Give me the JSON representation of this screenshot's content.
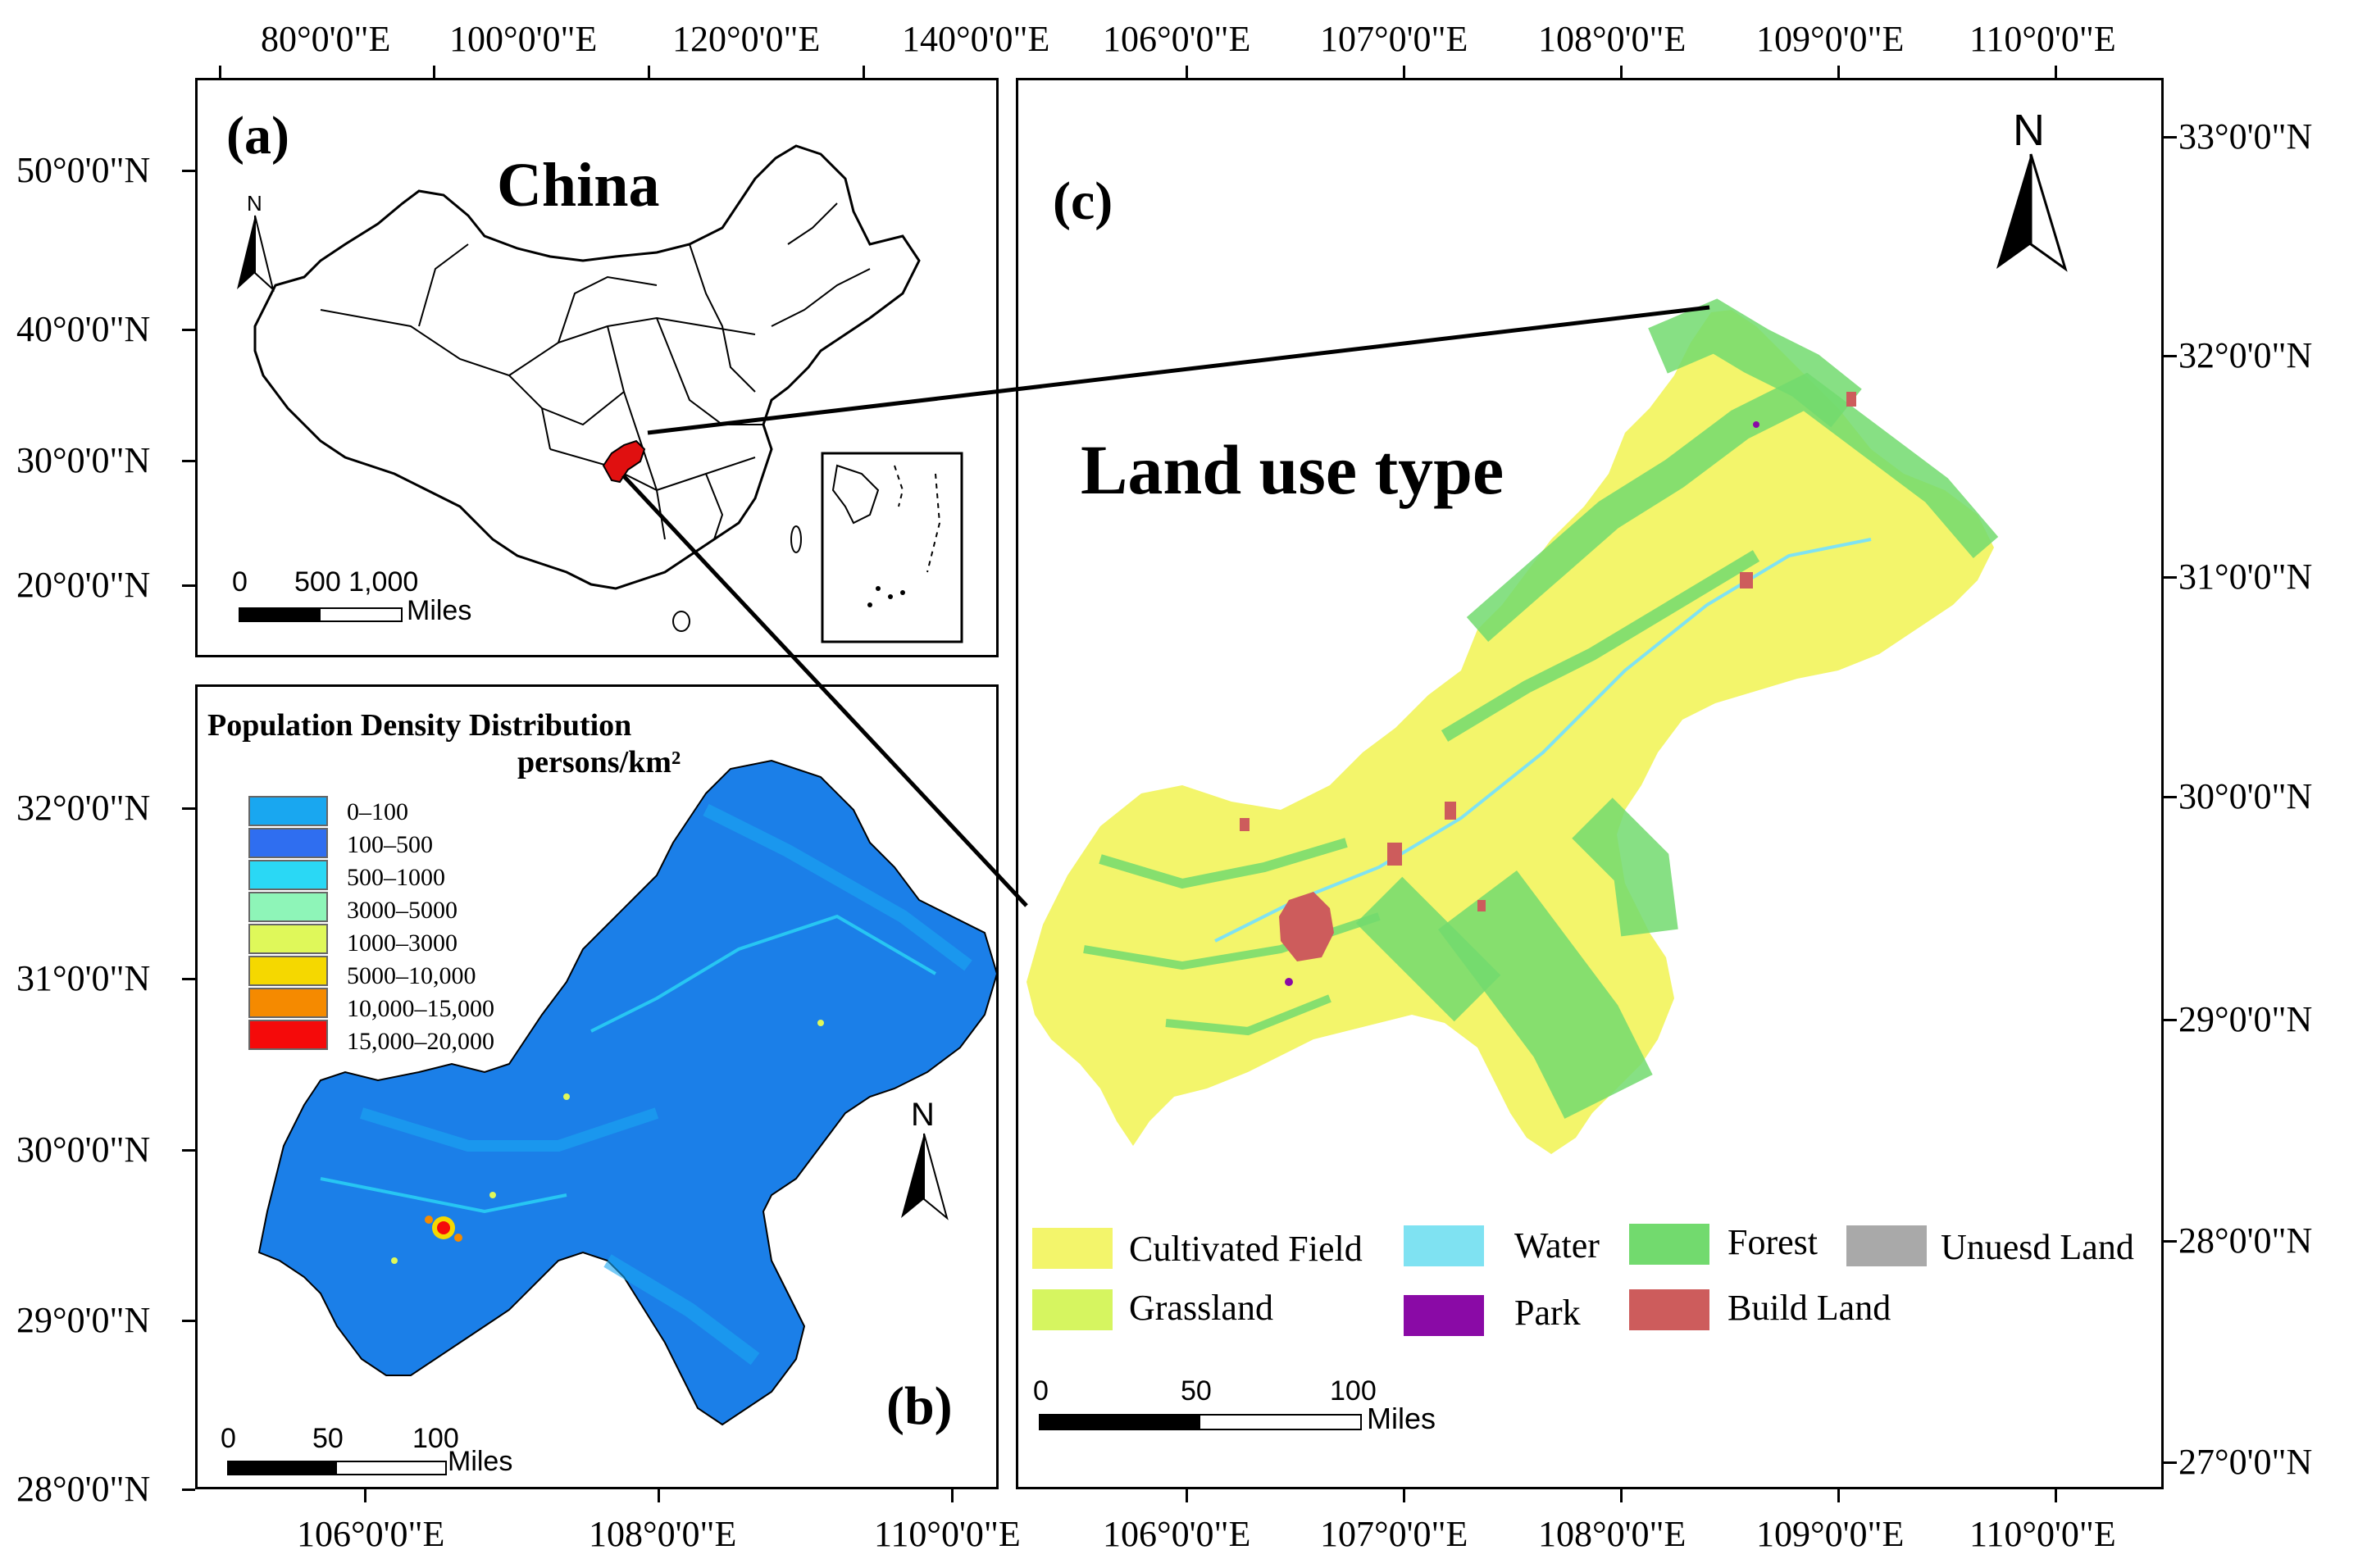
{
  "panel_a": {
    "label": "(a)",
    "title": "China",
    "north": "N",
    "scale_ticks": [
      "0",
      "500 1,000"
    ],
    "scale_unit": "Miles",
    "top_ticks": [
      "80°0'0\"E",
      "100°0'0\"E",
      "120°0'0\"E",
      "140°0'0\"E"
    ],
    "left_ticks": [
      "50°0'0\"N",
      "40°0'0\"N",
      "30°0'0\"N",
      "20°0'0\"N"
    ]
  },
  "panel_b": {
    "label": "(b)",
    "legend_title": "Population Density Distribution",
    "legend_unit": "persons/km²",
    "legend_items": [
      {
        "label": "0–100",
        "color": "#19a7f0"
      },
      {
        "label": "100–500",
        "color": "#2f6ef0"
      },
      {
        "label": "500–1000",
        "color": "#2ad8f5"
      },
      {
        "label": "3000–5000",
        "color": "#8ef5b8"
      },
      {
        "label": "1000–3000",
        "color": "#dff85a"
      },
      {
        "label": "5000–10,000",
        "color": "#f5d800"
      },
      {
        "label": "10,000–15,000",
        "color": "#f58a00"
      },
      {
        "label": "15,000–20,000",
        "color": "#f50a0a"
      }
    ],
    "north": "N",
    "scale_ticks": [
      "0",
      "50",
      "100"
    ],
    "scale_unit": "Miles",
    "bottom_ticks": [
      "106°0'0\"E",
      "108°0'0\"E",
      "110°0'0\"E"
    ],
    "left_ticks": [
      "32°0'0\"N",
      "31°0'0\"N",
      "30°0'0\"N",
      "29°0'0\"N",
      "28°0'0\"N"
    ]
  },
  "panel_c": {
    "label": "(c)",
    "title": "Land use type",
    "north": "N",
    "legend_items": [
      {
        "label": "Cultivated Field",
        "color": "#f3f56b"
      },
      {
        "label": "Water",
        "color": "#7fe2f2"
      },
      {
        "label": "Forest",
        "color": "#72da6e"
      },
      {
        "label": "Unuesd Land",
        "color": "#a9a9a9"
      },
      {
        "label": "Grassland",
        "color": "#d6f560"
      },
      {
        "label": "Park",
        "color": "#8a0aa6"
      },
      {
        "label": "Build Land",
        "color": "#cd5c5c"
      }
    ],
    "scale_ticks": [
      "0",
      "50",
      "100"
    ],
    "scale_unit": "Miles",
    "top_ticks": [
      "106°0'0\"E",
      "107°0'0\"E",
      "108°0'0\"E",
      "109°0'0\"E",
      "110°0'0\"E"
    ],
    "bottom_ticks": [
      "106°0'0\"E",
      "107°0'0\"E",
      "108°0'0\"E",
      "109°0'0\"E",
      "110°0'0\"E"
    ],
    "right_ticks": [
      "33°0'0\"N",
      "32°0'0\"N",
      "31°0'0\"N",
      "30°0'0\"N",
      "29°0'0\"N",
      "28°0'0\"N",
      "27°0'0\"N"
    ]
  },
  "colors": {
    "highlight_region": "#e01010",
    "map_outline": "#000000"
  }
}
